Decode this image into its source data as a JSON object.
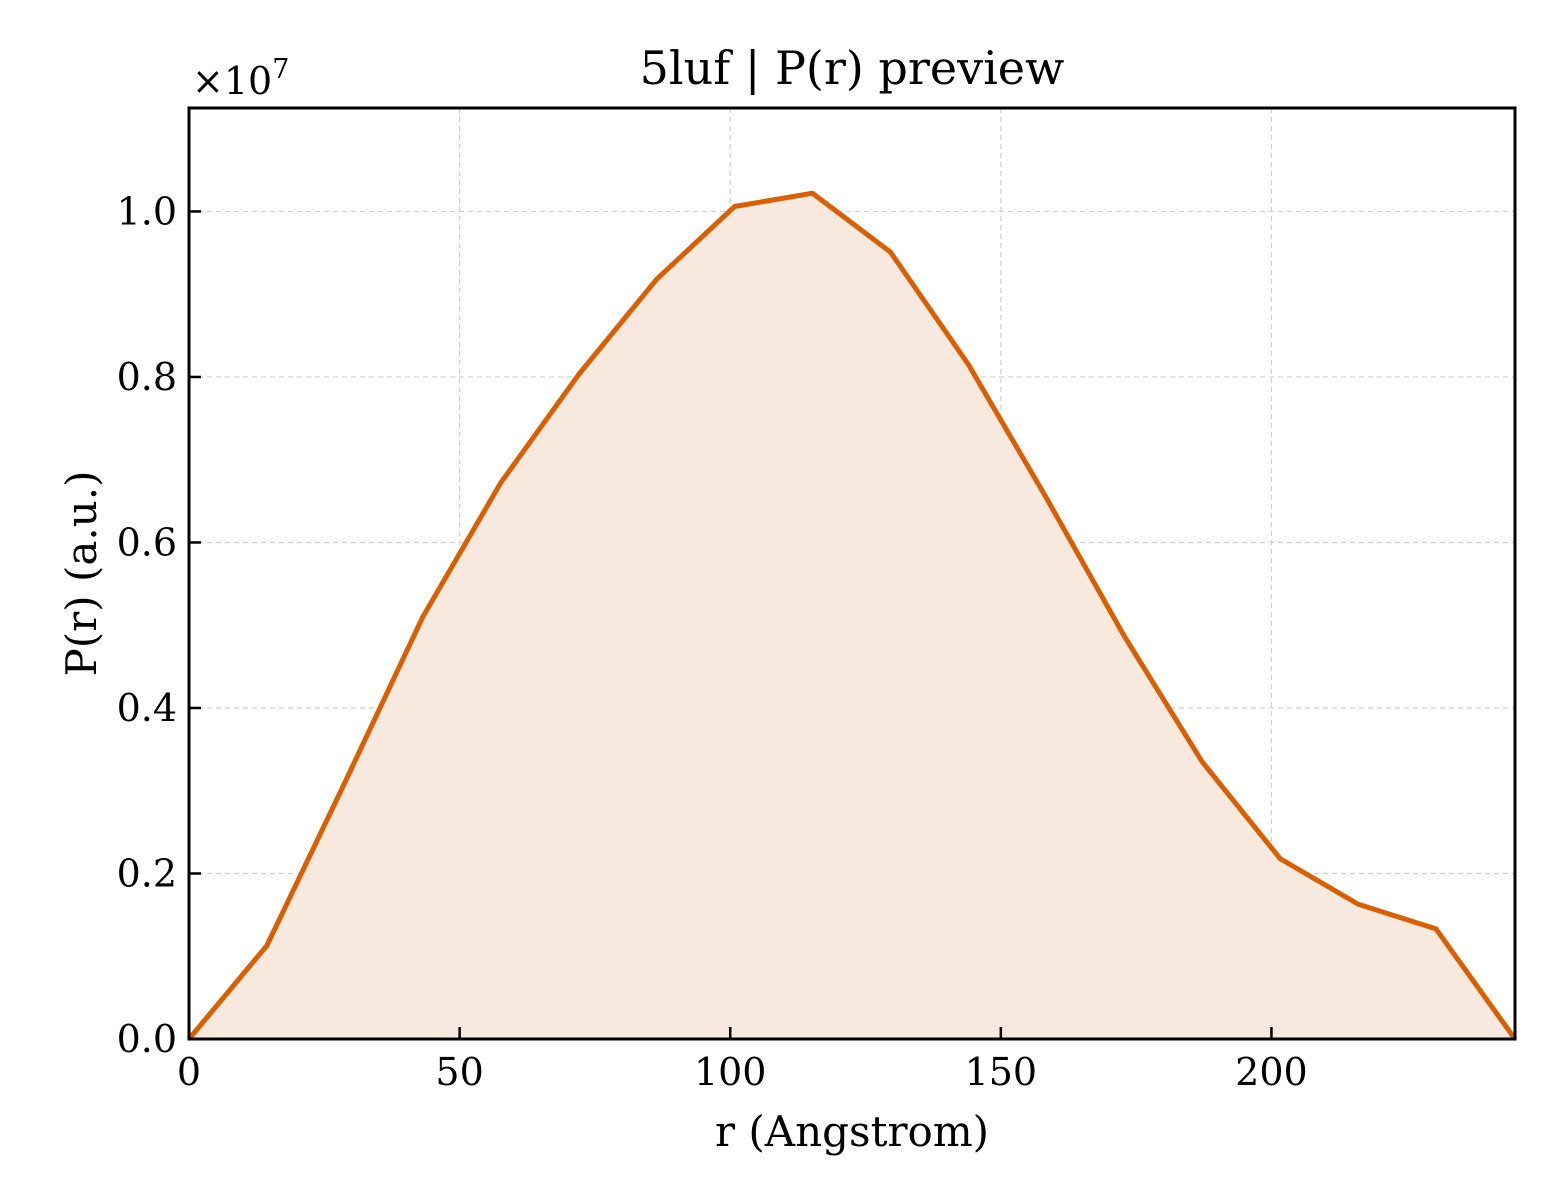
{
  "chart_data": {
    "type": "area",
    "title": "5luf | P(r) preview",
    "xlabel": "r (Angstrom)",
    "ylabel": "P(r) (a.u.)",
    "y_multiplier_label": "×10",
    "y_multiplier_exponent": "7",
    "xlim": [
      0,
      245
    ],
    "ylim": [
      0,
      1.125
    ],
    "x_ticks": [
      0,
      50,
      100,
      150,
      200
    ],
    "x_tick_labels": [
      "0",
      "50",
      "100",
      "150",
      "200"
    ],
    "y_ticks": [
      0.0,
      0.2,
      0.4,
      0.6,
      0.8,
      1.0
    ],
    "y_tick_labels": [
      "0.0",
      "0.2",
      "0.4",
      "0.6",
      "0.8",
      "1.0"
    ],
    "grid": true,
    "series": [
      {
        "color": "#d95f02",
        "fill_color": "#f8e9df",
        "x": [
          0,
          14.4,
          28.8,
          43.2,
          57.6,
          72.0,
          86.4,
          100.8,
          115.2,
          129.6,
          144.0,
          158.4,
          172.8,
          187.2,
          201.6,
          216.0,
          230.4,
          245.0
        ],
        "y": [
          0.0,
          0.113,
          0.31,
          0.51,
          0.672,
          0.803,
          0.918,
          1.006,
          1.022,
          0.951,
          0.815,
          0.654,
          0.487,
          0.335,
          0.218,
          0.163,
          0.133,
          0.0
        ]
      }
    ]
  }
}
